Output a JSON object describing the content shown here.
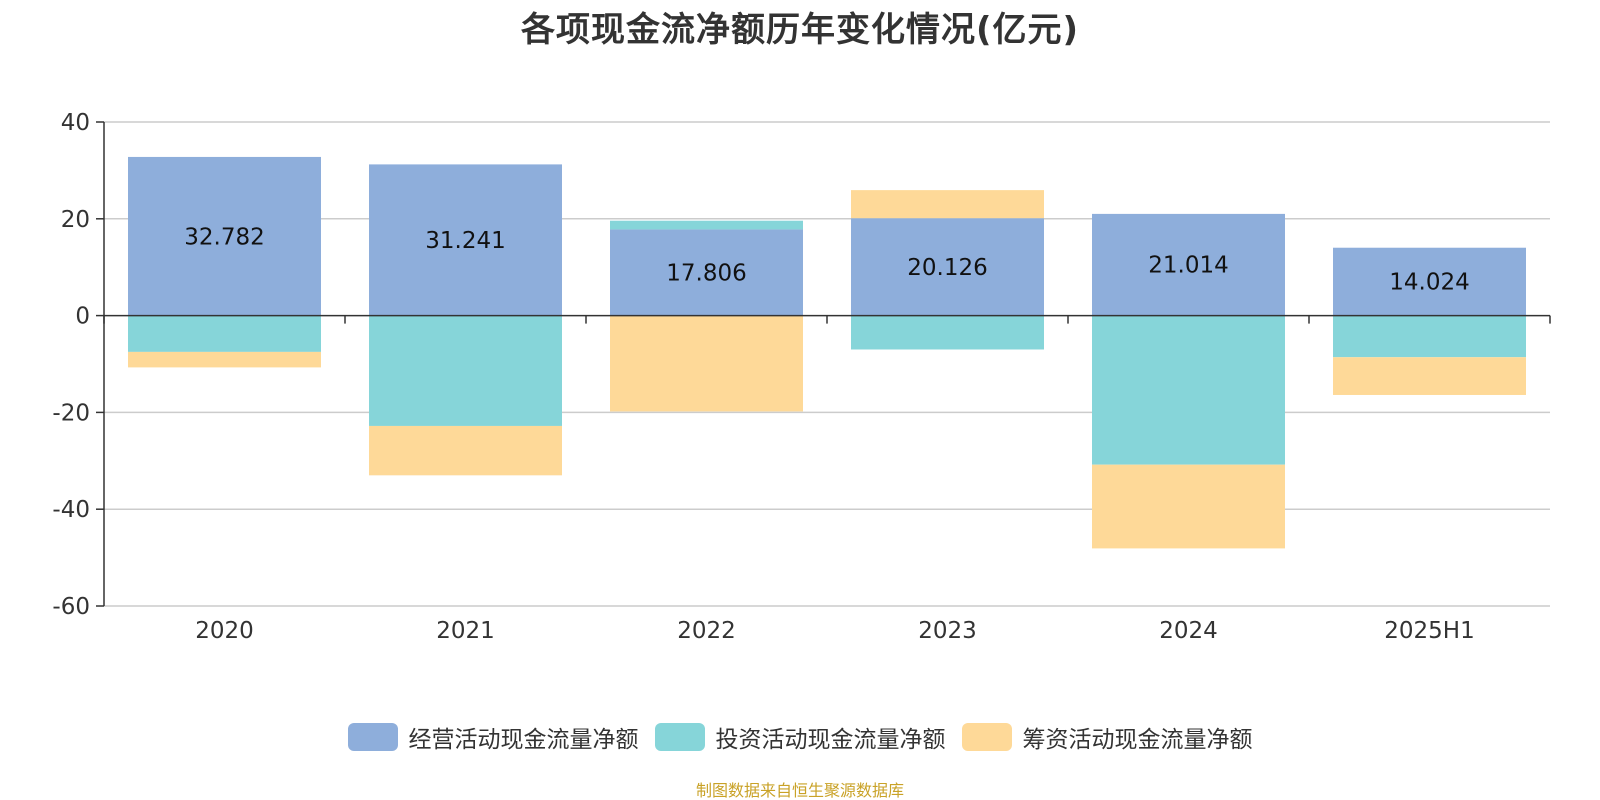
{
  "chart_data": {
    "type": "bar",
    "stacked": true,
    "title": "各项现金流净额历年变化情况(亿元)",
    "categories": [
      "2020",
      "2021",
      "2022",
      "2023",
      "2024",
      "2025H1"
    ],
    "series": [
      {
        "name": "经营活动现金流量净额",
        "color": "#8eaedb",
        "values": [
          32.782,
          31.241,
          17.806,
          20.126,
          21.014,
          14.024
        ],
        "data_labels": [
          "32.782",
          "31.241",
          "17.806",
          "20.126",
          "21.014",
          "14.024"
        ]
      },
      {
        "name": "投资活动现金流量净额",
        "color": "#86d5d9",
        "values": [
          -7.5,
          -22.8,
          1.8,
          -7.0,
          -30.8,
          -8.6
        ]
      },
      {
        "name": "筹资活动现金流量净额",
        "color": "#fed998",
        "values": [
          -3.2,
          -10.2,
          -19.8,
          5.8,
          -17.3,
          -7.8
        ]
      }
    ],
    "y_ticks": [
      "40",
      "20",
      "0",
      "-20",
      "-40",
      "-60"
    ],
    "ylim": [
      -60,
      40
    ],
    "grid": true,
    "legend_position": "bottom",
    "xlabel": "",
    "ylabel": ""
  },
  "source_note": "制图数据来自恒生聚源数据库"
}
